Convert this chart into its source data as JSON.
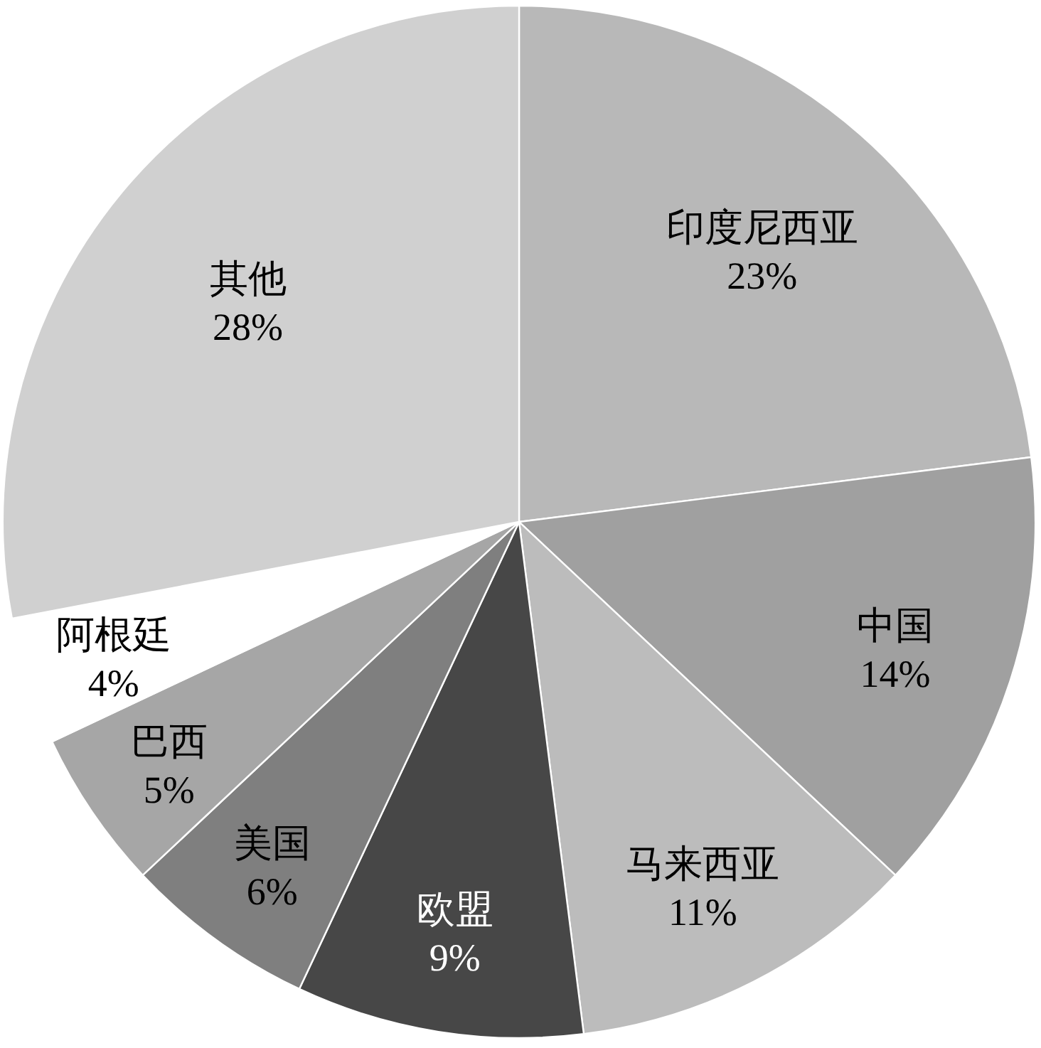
{
  "chart_data": {
    "type": "pie",
    "categories": [
      "印度尼西亚",
      "中国",
      "马来西亚",
      "欧盟",
      "美国",
      "巴西",
      "阿根廷",
      "其他"
    ],
    "values": [
      23,
      14,
      11,
      9,
      6,
      5,
      4,
      28
    ],
    "colors": [
      "#b8b8b8",
      "#a0a0a0",
      "#bcbcbc",
      "#474747",
      "#7f7f7f",
      "#a6a6a6",
      "#ffffff",
      "#d0d0d0"
    ],
    "value_labels": [
      "23%",
      "14%",
      "11%",
      "9%",
      "6%",
      "5%",
      "4%",
      "28%"
    ]
  }
}
